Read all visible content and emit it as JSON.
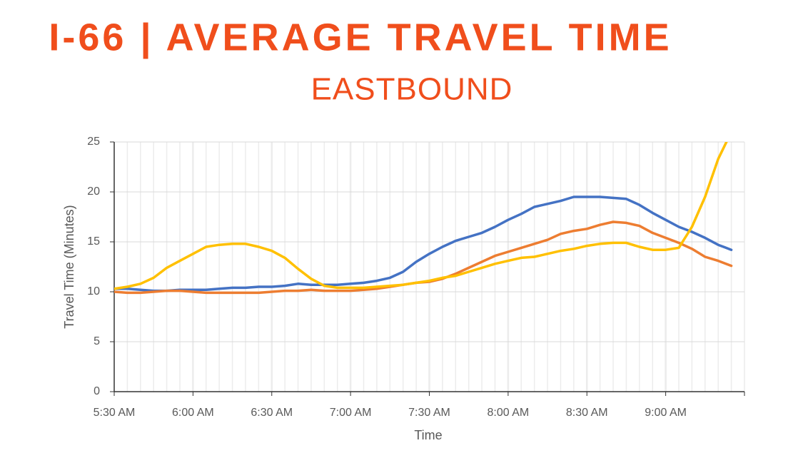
{
  "chart_data": {
    "type": "line",
    "title": "I-66 | AVERAGE TRAVEL TIME",
    "subtitle": "EASTBOUND",
    "x_label": "Time",
    "y_label": "Travel Time (Minutes)",
    "categories": [
      "5:30 AM",
      null,
      null,
      null,
      null,
      null,
      "6:00 AM",
      null,
      null,
      null,
      null,
      null,
      "6:30 AM",
      null,
      null,
      null,
      null,
      null,
      "7:00 AM",
      null,
      null,
      null,
      null,
      null,
      "7:30 AM",
      null,
      null,
      null,
      null,
      null,
      "8:00 AM",
      null,
      null,
      null,
      null,
      null,
      "8:30 AM",
      null,
      null,
      null,
      null,
      null,
      "9:00 AM",
      null,
      null,
      null,
      null,
      null
    ],
    "series": [
      {
        "color": "#4472c4",
        "values": [
          10.3,
          10.3,
          10.2,
          10.1,
          10.1,
          10.2,
          10.2,
          10.2,
          10.3,
          10.4,
          10.4,
          10.5,
          10.5,
          10.6,
          10.8,
          10.7,
          10.7,
          10.7,
          10.8,
          10.9,
          11.1,
          11.4,
          12.0,
          13.0,
          13.8,
          14.5,
          15.1,
          15.5,
          15.9,
          16.5,
          17.2,
          17.8,
          18.5,
          18.8,
          19.1,
          19.5,
          19.5,
          19.5,
          19.4,
          19.3,
          18.7,
          17.9,
          17.2,
          16.5,
          16.0,
          15.4,
          14.7,
          14.2
        ]
      },
      {
        "color": "#ed7d31",
        "values": [
          10.0,
          9.9,
          9.9,
          10.0,
          10.1,
          10.1,
          10.0,
          9.9,
          9.9,
          9.9,
          9.9,
          9.9,
          10.0,
          10.1,
          10.1,
          10.2,
          10.1,
          10.1,
          10.1,
          10.2,
          10.3,
          10.5,
          10.7,
          10.9,
          11.0,
          11.3,
          11.8,
          12.4,
          13.0,
          13.6,
          14.0,
          14.4,
          14.8,
          15.2,
          15.8,
          16.1,
          16.3,
          16.7,
          17.0,
          16.9,
          16.6,
          15.9,
          15.4,
          14.9,
          14.3,
          13.5,
          13.1,
          12.6
        ]
      },
      {
        "color": "#ffc000",
        "values": [
          10.3,
          10.5,
          10.8,
          11.4,
          12.4,
          13.1,
          13.8,
          14.5,
          14.7,
          14.8,
          14.8,
          14.5,
          14.1,
          13.4,
          12.3,
          11.3,
          10.6,
          10.4,
          10.4,
          10.4,
          10.5,
          10.6,
          10.7,
          10.9,
          11.1,
          11.4,
          11.6,
          12.0,
          12.4,
          12.8,
          13.1,
          13.4,
          13.5,
          13.8,
          14.1,
          14.3,
          14.6,
          14.8,
          14.9,
          14.9,
          14.5,
          14.2,
          14.2,
          14.4,
          16.5,
          19.5,
          23.3,
          26.0
        ]
      }
    ],
    "ylim": [
      0,
      25
    ],
    "yticks": [
      0,
      5,
      10,
      15,
      20,
      25
    ],
    "grid": true,
    "title_color": "#f04e1c"
  }
}
